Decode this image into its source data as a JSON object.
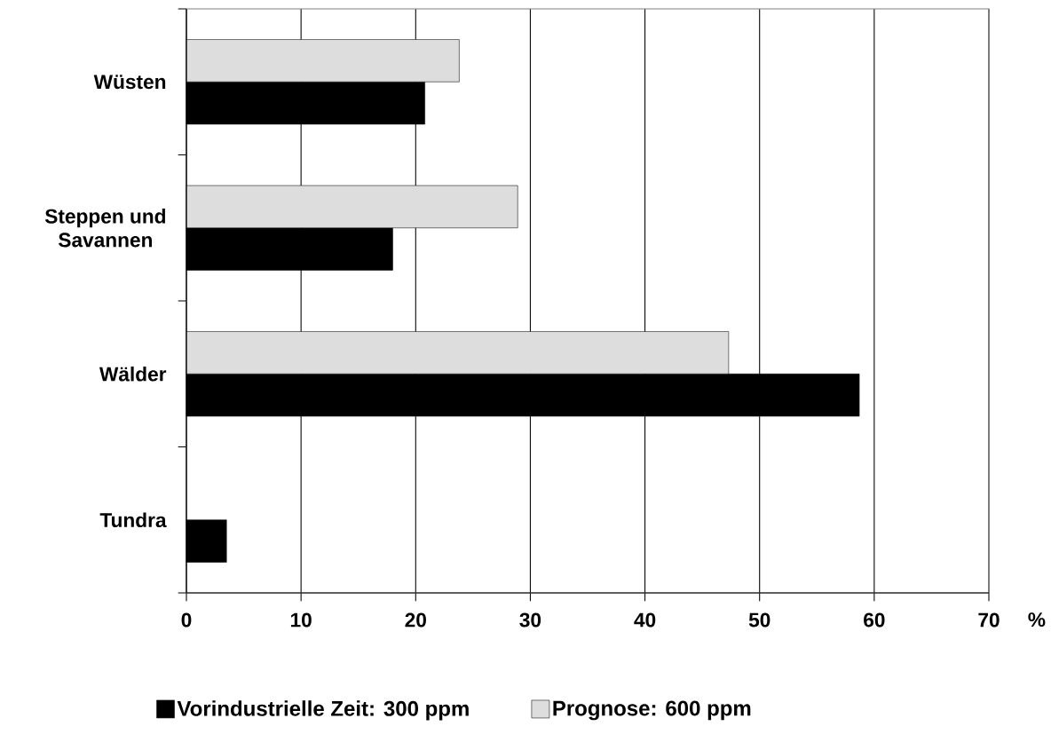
{
  "chart_data": {
    "type": "bar",
    "orientation": "horizontal",
    "categories": [
      "Wüsten",
      "Steppen und Savannen",
      "Wälder",
      "Tundra"
    ],
    "series": [
      {
        "name": "Vorindustrielle Zeit: 300 ppm",
        "color": "#000000",
        "values": [
          20.8,
          18.0,
          58.7,
          3.5
        ]
      },
      {
        "name": "Prognose: 600 ppm",
        "color": "#dddddd",
        "values": [
          23.8,
          28.9,
          47.3,
          null
        ]
      }
    ],
    "xlabel": "%",
    "xlim": [
      0,
      70
    ],
    "xticks": [
      0,
      10,
      20,
      30,
      40,
      50,
      60,
      70
    ],
    "grid": "x",
    "legend": "bottom"
  }
}
